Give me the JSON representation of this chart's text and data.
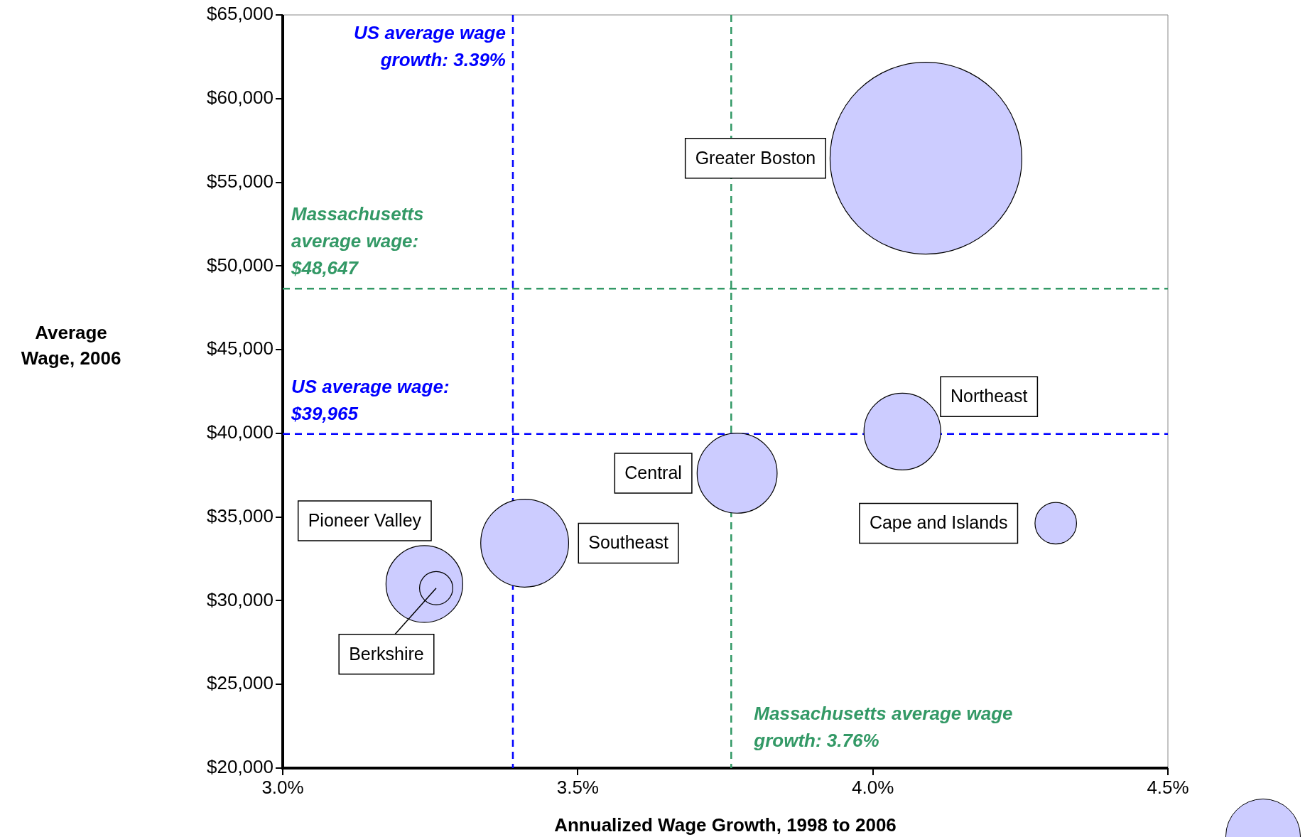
{
  "chart_data": {
    "type": "bubble",
    "xlabel": "Annualized Wage Growth, 1998 to 2006",
    "ylabel": "Average Wage, 2006",
    "xlim": [
      3.0,
      4.5
    ],
    "xticks": [
      {
        "value": 3.0,
        "label": "3.0%"
      },
      {
        "value": 3.5,
        "label": "3.5%"
      },
      {
        "value": 4.0,
        "label": "4.0%"
      },
      {
        "value": 4.5,
        "label": "4.5%"
      }
    ],
    "ylim": [
      20000,
      65000
    ],
    "yticks": [
      {
        "value": 20000,
        "label": "$20,000"
      },
      {
        "value": 25000,
        "label": "$25,000"
      },
      {
        "value": 30000,
        "label": "$30,000"
      },
      {
        "value": 35000,
        "label": "$35,000"
      },
      {
        "value": 40000,
        "label": "$40,000"
      },
      {
        "value": 45000,
        "label": "$45,000"
      },
      {
        "value": 50000,
        "label": "$50,000"
      },
      {
        "value": 55000,
        "label": "$55,000"
      },
      {
        "value": 60000,
        "label": "$60,000"
      },
      {
        "value": 65000,
        "label": "$65,000"
      }
    ],
    "grid": false,
    "legend": false,
    "series": [
      {
        "name": "Greater Boston",
        "color": "#ccccff",
        "x": [
          4.09
        ],
        "values": [
          56440
        ],
        "sizes": [
          1
        ]
      },
      {
        "name": "Northeast",
        "color": "#ccccff",
        "x": [
          4.05
        ],
        "values": [
          40110
        ],
        "sizes": [
          0.16
        ]
      },
      {
        "name": "Central",
        "color": "#ccccff",
        "x": [
          3.77
        ],
        "values": [
          37620
        ],
        "sizes": [
          0.174
        ]
      },
      {
        "name": "Cape and Islands",
        "color": "#ccccff",
        "x": [
          4.31
        ],
        "values": [
          34630
        ],
        "sizes": [
          0.047
        ]
      },
      {
        "name": "Southeast",
        "color": "#ccccff",
        "x": [
          3.41
        ],
        "values": [
          33440
        ],
        "sizes": [
          0.21
        ]
      },
      {
        "name": "Pioneer Valley",
        "color": "#ccccff",
        "x": [
          3.24
        ],
        "values": [
          31000
        ],
        "sizes": [
          0.16
        ]
      },
      {
        "name": "Berkshire",
        "color": "#ccccff",
        "x": [
          3.26
        ],
        "values": [
          30750
        ],
        "sizes": [
          0.03
        ]
      }
    ],
    "ref_lines": [
      {
        "axis": "y",
        "value": 48647,
        "label": "Massachusetts average wage: $48,647",
        "color": "#339966",
        "line_style": "dashed"
      },
      {
        "axis": "y",
        "value": 39965,
        "label": "US average wage: $39,965",
        "color": "#0000ff",
        "line_style": "dashed"
      },
      {
        "axis": "x",
        "value": 3.39,
        "label": "US average wage growth: 3.39%",
        "color": "#0000ff",
        "line_style": "dashed"
      },
      {
        "axis": "x",
        "value": 3.76,
        "label": "Massachusetts average wage growth: 3.76%",
        "color": "#339966",
        "line_style": "dashed"
      }
    ]
  }
}
